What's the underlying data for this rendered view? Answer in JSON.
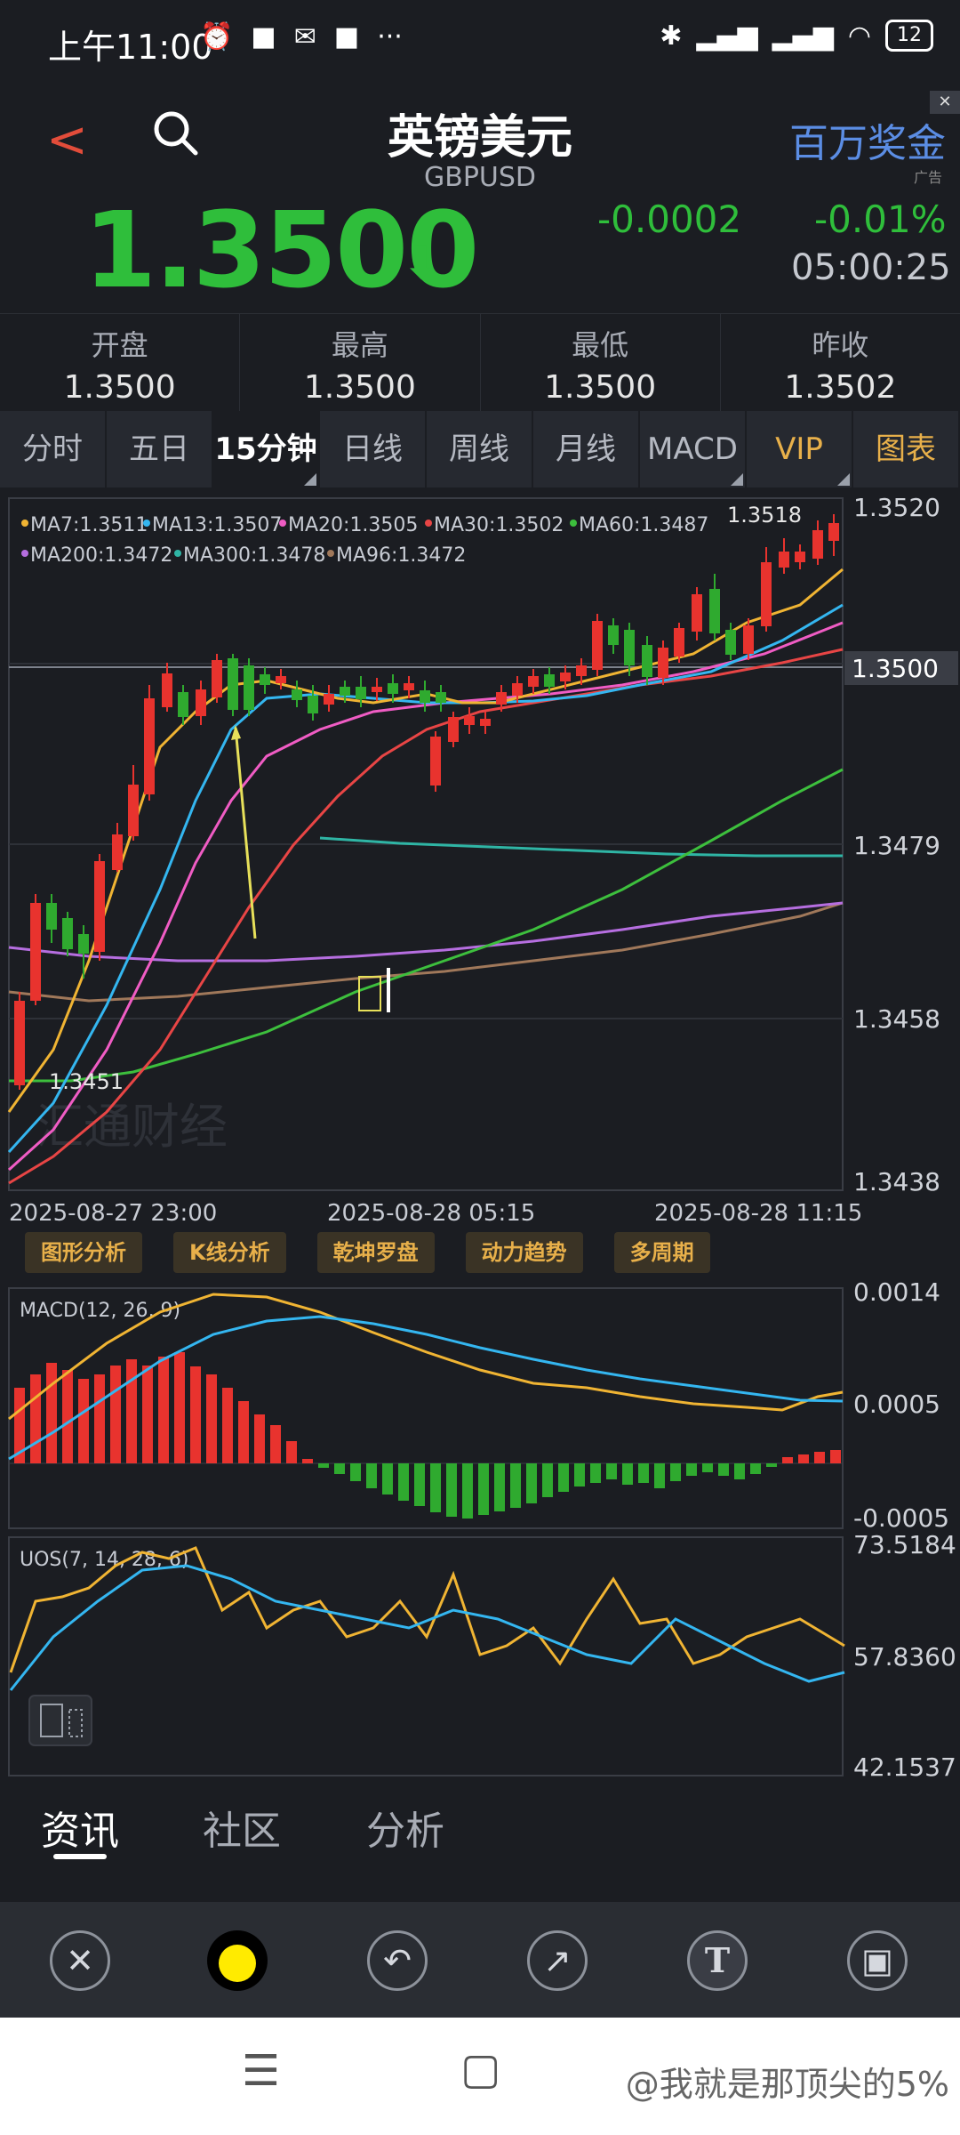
{
  "status": {
    "time": "上午11:00",
    "battery": "12"
  },
  "header": {
    "title": "英镑美元",
    "subtitle": "GBPUSD",
    "ad_label": "百万奖金",
    "ad_tag": "广告",
    "ad_close": "✕"
  },
  "quote": {
    "price": "1.3500",
    "change": "-0.0002",
    "change_pct": "-0.01%",
    "time": "05:00:25"
  },
  "stats": [
    {
      "label": "开盘",
      "value": "1.3500"
    },
    {
      "label": "最高",
      "value": "1.3500"
    },
    {
      "label": "最低",
      "value": "1.3500"
    },
    {
      "label": "昨收",
      "value": "1.3502"
    }
  ],
  "tabs": [
    "分时",
    "五日",
    "15分钟",
    "日线",
    "周线",
    "月线",
    "MACD",
    "VIP",
    "图表"
  ],
  "main_chart": {
    "ma_row1": [
      {
        "label": "MA7:1.3511",
        "color": "#f0b433"
      },
      {
        "label": "MA13:1.3507",
        "color": "#34b6f0"
      },
      {
        "label": "MA20:1.3505",
        "color": "#f05cc4"
      },
      {
        "label": "MA30:1.3502",
        "color": "#e84545"
      },
      {
        "label": "MA60:1.3487",
        "color": "#3dbf3d"
      }
    ],
    "ma_row2": [
      {
        "label": "MA200:1.3472",
        "color": "#b66ee0"
      },
      {
        "label": "MA300:1.3478",
        "color": "#2fb5a5"
      },
      {
        "label": "MA96:1.3472",
        "color": "#a0785a"
      }
    ],
    "y_labels": [
      "1.3520",
      "1.3500",
      "1.3479",
      "1.3458",
      "1.3438"
    ],
    "x_labels": [
      "2025-08-27 23:00",
      "2025-08-28 05:15",
      "2025-08-28 11:15"
    ],
    "high_label": "1.3518",
    "low_label": "1.3451",
    "watermark": "汇通财经"
  },
  "tools": [
    "图形分析",
    "K线分析",
    "乾坤罗盘",
    "动力趋势",
    "多周期"
  ],
  "macd": {
    "title": "MACD(12, 26, 9)",
    "y_labels": [
      "0.0014",
      "0.0005",
      "-0.0005"
    ]
  },
  "uos": {
    "title": "UOS(7, 14, 28, 6)",
    "y_labels": [
      "73.5184",
      "57.8360",
      "42.1537"
    ]
  },
  "bottom_tabs": [
    "资讯",
    "社区",
    "分析"
  ],
  "toolbar_icons": [
    "close-icon",
    "color-dot-icon",
    "undo-icon",
    "arrow-icon",
    "text-icon",
    "save-icon"
  ],
  "watermark_user": "@我就是那顶尖的5%"
}
